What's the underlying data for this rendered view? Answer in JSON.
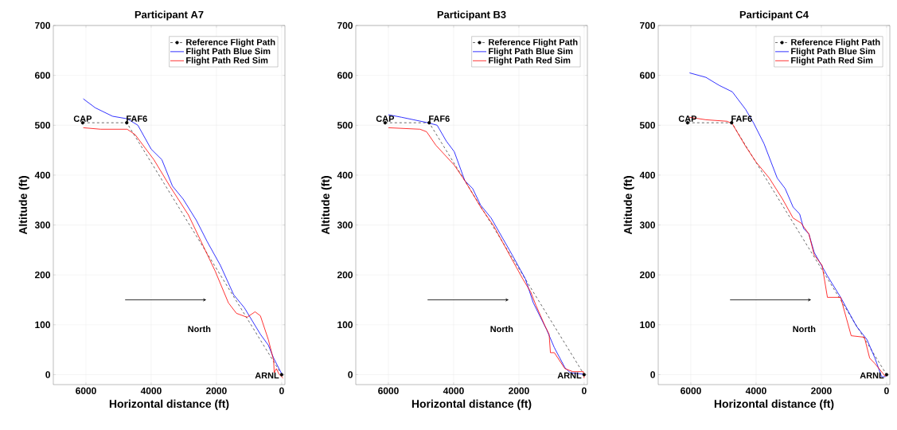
{
  "chart_data": [
    {
      "type": "line",
      "title": "Participant A7",
      "xlabel": "Horizontal distance (ft)",
      "ylabel": "Altitude (ft)",
      "xlim": [
        7000,
        -100
      ],
      "ylim": [
        -20,
        700
      ],
      "xticks": [
        6000,
        4000,
        2000,
        0
      ],
      "yticks": [
        0,
        100,
        200,
        300,
        400,
        500,
        600,
        700
      ],
      "grid": true,
      "legend": "top right",
      "series": [
        {
          "name": "Reference Flight Path",
          "color": "#000000",
          "marker": "circle",
          "line_style": "dashed",
          "x": [
            6100,
            4750,
            0
          ],
          "values": [
            505,
            505,
            0
          ]
        },
        {
          "name": "Flight Path Blue Sim",
          "color": "#0000ff",
          "marker": "none",
          "line_style": "solid",
          "x": [
            6082,
            5715,
            5183,
            4735,
            4408,
            4000,
            3673,
            3347,
            3020,
            2612,
            2286,
            1878,
            1469,
            1143,
            653,
            408,
            245,
            82,
            -16
          ],
          "values": [
            553,
            535,
            518,
            513,
            500,
            452,
            431,
            378,
            352,
            309,
            267,
            219,
            160,
            134,
            81,
            59,
            33,
            12,
            0
          ]
        },
        {
          "name": "Flight Path Red Sim",
          "color": "#ff0000",
          "marker": "none",
          "line_style": "solid",
          "x": [
            6082,
            5551,
            4735,
            4490,
            3918,
            3429,
            2857,
            2041,
            1633,
            1388,
            1061,
            816,
            653,
            408,
            245,
            229,
            163,
            82,
            -41
          ],
          "values": [
            495,
            492,
            492,
            481,
            431,
            378,
            320,
            208,
            144,
            123,
            115,
            126,
            118,
            70,
            28,
            4,
            12,
            1,
            -7
          ]
        }
      ],
      "annotations": [
        {
          "text": "CAP",
          "x": 6100,
          "y": 505
        },
        {
          "text": "FAF6",
          "x": 4750,
          "y": 505
        },
        {
          "text": "ARNL",
          "x": 0,
          "y": 0
        },
        "North"
      ]
    },
    {
      "type": "line",
      "title": "Participant B3",
      "xlabel": "Horizontal distance (ft)",
      "ylabel": "Altitude (ft)",
      "xlim": [
        7000,
        -100
      ],
      "ylim": [
        -20,
        700
      ],
      "xticks": [
        6000,
        4000,
        2000,
        0
      ],
      "yticks": [
        0,
        100,
        200,
        300,
        400,
        500,
        600,
        700
      ],
      "grid": true,
      "legend": "top right",
      "series": [
        {
          "name": "Reference Flight Path",
          "color": "#000000",
          "marker": "circle",
          "line_style": "dashed",
          "x": [
            6100,
            4750,
            0
          ],
          "values": [
            505,
            505,
            0
          ]
        },
        {
          "name": "Flight Path Blue Sim",
          "color": "#0000ff",
          "marker": "none",
          "line_style": "solid",
          "x": [
            6000,
            5596,
            4788,
            4506,
            4223,
            3981,
            3658,
            3416,
            3174,
            2851,
            2528,
            2205,
            1801,
            1558,
            1154,
            912,
            589,
            428,
            24
          ],
          "values": [
            521,
            516,
            505,
            500,
            468,
            447,
            389,
            373,
            340,
            314,
            277,
            240,
            192,
            144,
            91,
            54,
            14,
            4,
            1
          ]
        },
        {
          "name": "Flight Path Red Sim",
          "color": "#ff0000",
          "marker": "none",
          "line_style": "solid",
          "x": [
            6000,
            5031,
            4829,
            4546,
            3981,
            3658,
            3174,
            2770,
            2286,
            1882,
            1639,
            1477,
            1195,
            1074,
            1033,
            912,
            589,
            347,
            24,
            0
          ],
          "values": [
            495,
            492,
            487,
            460,
            420,
            389,
            336,
            298,
            240,
            192,
            166,
            139,
            97,
            81,
            44,
            44,
            12,
            6,
            6,
            -7
          ]
        }
      ],
      "annotations": [
        {
          "text": "CAP",
          "x": 6100,
          "y": 505
        },
        {
          "text": "FAF6",
          "x": 4750,
          "y": 505
        },
        {
          "text": "ARNL",
          "x": 0,
          "y": 0
        },
        "North"
      ]
    },
    {
      "type": "line",
      "title": "Participant C4",
      "xlabel": "Horizontal distance (ft)",
      "ylabel": "Altitude (ft)",
      "xlim": [
        7000,
        -100
      ],
      "ylim": [
        -20,
        700
      ],
      "xticks": [
        6000,
        4000,
        2000,
        0
      ],
      "yticks": [
        0,
        100,
        200,
        300,
        400,
        500,
        600,
        700
      ],
      "grid": true,
      "legend": "top right",
      "series": [
        {
          "name": "Reference Flight Path",
          "color": "#000000",
          "marker": "circle",
          "line_style": "dashed",
          "x": [
            6100,
            4750,
            0
          ],
          "values": [
            505,
            505,
            0
          ]
        },
        {
          "name": "Flight Path Blue Sim",
          "color": "#0000ff",
          "marker": "none",
          "line_style": "solid",
          "x": [
            6040,
            5538,
            5133,
            4729,
            4324,
            4081,
            3757,
            3352,
            3109,
            2866,
            2664,
            2543,
            2381,
            2219,
            1814,
            1409,
            923,
            599,
            356,
            154,
            32
          ],
          "values": [
            605,
            596,
            580,
            567,
            532,
            505,
            463,
            394,
            373,
            336,
            322,
            293,
            282,
            245,
            198,
            155,
            97,
            70,
            33,
            -4,
            -4
          ]
        },
        {
          "name": "Flight Path Red Sim",
          "color": "#ff0000",
          "marker": "none",
          "line_style": "solid",
          "x": [
            6040,
            5538,
            4891,
            4729,
            4324,
            3999,
            3595,
            3190,
            2866,
            2624,
            2381,
            2219,
            1976,
            1814,
            1409,
            1085,
            680,
            518,
            356,
            32
          ],
          "values": [
            516,
            511,
            508,
            503,
            458,
            426,
            394,
            352,
            314,
            304,
            282,
            240,
            219,
            155,
            155,
            78,
            75,
            33,
            22,
            -4
          ]
        }
      ],
      "annotations": [
        {
          "text": "CAP",
          "x": 6100,
          "y": 505
        },
        {
          "text": "FAF6",
          "x": 4750,
          "y": 505
        },
        {
          "text": "ARNL",
          "x": 0,
          "y": 0
        },
        "North"
      ]
    }
  ]
}
